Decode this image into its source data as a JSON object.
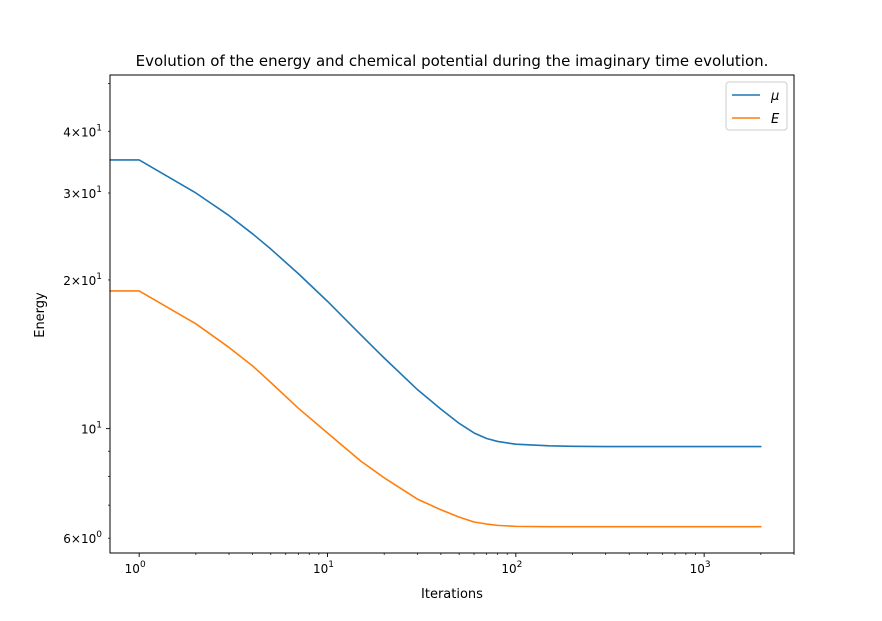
{
  "chart_data": {
    "type": "line",
    "title": "Evolution of the energy and chemical potential during the imaginary time evolution.",
    "xlabel": "Iterations",
    "ylabel": "Energy",
    "xscale": "log",
    "yscale": "log",
    "xlim": [
      0.7,
      3000
    ],
    "ylim": [
      5.6,
      52
    ],
    "legend_position": "top-right",
    "grid": false,
    "x_ticks": [
      {
        "value": 1,
        "base": "10",
        "exp": "0"
      },
      {
        "value": 10,
        "base": "10",
        "exp": "1"
      },
      {
        "value": 100,
        "base": "10",
        "exp": "2"
      },
      {
        "value": 1000,
        "base": "10",
        "exp": "3"
      }
    ],
    "y_ticks": [
      {
        "value": 6,
        "mant": "6",
        "base": "10",
        "exp": "0"
      },
      {
        "value": 10,
        "mant": "",
        "base": "10",
        "exp": "1"
      },
      {
        "value": 20,
        "mant": "2",
        "base": "10",
        "exp": "1"
      },
      {
        "value": 30,
        "mant": "3",
        "base": "10",
        "exp": "1"
      },
      {
        "value": 40,
        "mant": "4",
        "base": "10",
        "exp": "1"
      }
    ],
    "series": [
      {
        "name": "μ",
        "color": "#1f77b4",
        "x": [
          0.7,
          1,
          2,
          3,
          4,
          5,
          7,
          10,
          15,
          20,
          30,
          40,
          50,
          60,
          70,
          80,
          100,
          150,
          200,
          300,
          500,
          1000,
          2000
        ],
        "y": [
          35,
          35,
          30,
          27,
          24.8,
          23.1,
          20.6,
          18.1,
          15.5,
          13.9,
          12.0,
          10.95,
          10.25,
          9.8,
          9.55,
          9.42,
          9.3,
          9.23,
          9.21,
          9.2,
          9.2,
          9.2,
          9.2
        ]
      },
      {
        "name": "E",
        "color": "#ff7f0e",
        "x": [
          0.7,
          1,
          2,
          3,
          4,
          5,
          7,
          10,
          15,
          20,
          30,
          40,
          50,
          60,
          70,
          80,
          100,
          150,
          200,
          300,
          500,
          1000,
          2000
        ],
        "y": [
          19,
          19,
          16.3,
          14.6,
          13.4,
          12.4,
          11.0,
          9.8,
          8.6,
          7.95,
          7.2,
          6.85,
          6.62,
          6.47,
          6.41,
          6.37,
          6.34,
          6.33,
          6.33,
          6.33,
          6.33,
          6.33,
          6.33
        ]
      }
    ]
  }
}
